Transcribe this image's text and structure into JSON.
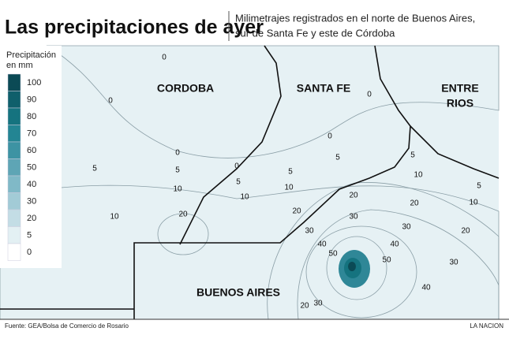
{
  "header": {
    "title": "Las precipitaciones de ayer",
    "subtitle": [
      "Milimetrajes registrados en el norte de Buenos Aires,",
      "sur de Santa Fe y este de Córdoba"
    ]
  },
  "legend": {
    "title": [
      "Precipitación",
      "en mm"
    ],
    "items": [
      {
        "label": "100",
        "color": "#0b4a55"
      },
      {
        "label": "90",
        "color": "#0f5f6b"
      },
      {
        "label": "80",
        "color": "#15737f"
      },
      {
        "label": "70",
        "color": "#238593"
      },
      {
        "label": "60",
        "color": "#3d93a3"
      },
      {
        "label": "50",
        "color": "#5ea5b5"
      },
      {
        "label": "40",
        "color": "#80b9c7"
      },
      {
        "label": "30",
        "color": "#a2cbd6"
      },
      {
        "label": "20",
        "color": "#c3dde5"
      },
      {
        "label": "5",
        "color": "#e3f0f3"
      },
      {
        "label": "0",
        "color": "#ffffff"
      }
    ]
  },
  "regions": [
    "CORDOBA",
    "SANTA FE",
    "ENTRE",
    "RIOS",
    "BUENOS AIRES"
  ],
  "contour_labels": [
    "0",
    "0",
    "0",
    "0",
    "0",
    "0",
    "5",
    "5",
    "5",
    "5",
    "5",
    "5",
    "5",
    "10",
    "10",
    "10",
    "10",
    "10",
    "10",
    "20",
    "20",
    "20",
    "20",
    "20",
    "30",
    "30",
    "30",
    "30",
    "40",
    "40",
    "40",
    "50",
    "50",
    "20",
    "30"
  ],
  "footer": {
    "source": "Fuente: GEA/Bolsa de Comercio de Rosario",
    "credit": "LA NACION"
  }
}
